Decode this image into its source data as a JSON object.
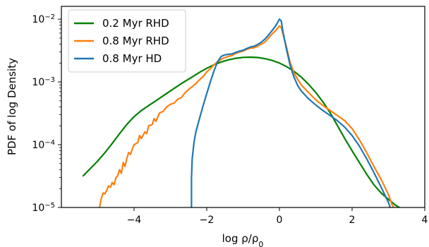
{
  "chart_data": {
    "type": "line",
    "xlabel": "log ρ/ρ",
    "xlabel_subscript": "0",
    "ylabel": "PDF of log Density",
    "xlim": [
      -6.0,
      4.0
    ],
    "ylim": [
      1e-05,
      0.016
    ],
    "yscale": "log",
    "grid": false,
    "legend_position": "top-left",
    "xticks": [
      {
        "value": -4,
        "label": "−4"
      },
      {
        "value": -2,
        "label": "−2"
      },
      {
        "value": 0,
        "label": "0"
      },
      {
        "value": 2,
        "label": "2"
      },
      {
        "value": 4,
        "label": "4"
      }
    ],
    "yticks": [
      {
        "value": 1e-05,
        "base": "10",
        "exp": "−5"
      },
      {
        "value": 0.0001,
        "base": "10",
        "exp": "−4"
      },
      {
        "value": 0.001,
        "base": "10",
        "exp": "−3"
      },
      {
        "value": 0.01,
        "base": "10",
        "exp": "−2"
      }
    ],
    "series": [
      {
        "name": "0.2 Myr RHD",
        "color": "#008000",
        "points": [
          [
            -5.4,
            3.2e-05
          ],
          [
            -5.2,
            4.2e-05
          ],
          [
            -5.0,
            5.5e-05
          ],
          [
            -4.8,
            7.5e-05
          ],
          [
            -4.6,
            0.000105
          ],
          [
            -4.4,
            0.00015
          ],
          [
            -4.2,
            0.00021
          ],
          [
            -4.0,
            0.00028
          ],
          [
            -3.8,
            0.00035
          ],
          [
            -3.6,
            0.00042
          ],
          [
            -3.4,
            0.0005
          ],
          [
            -3.2,
            0.0006
          ],
          [
            -3.0,
            0.00072
          ],
          [
            -2.8,
            0.00086
          ],
          [
            -2.6,
            0.00102
          ],
          [
            -2.4,
            0.0012
          ],
          [
            -2.2,
            0.00142
          ],
          [
            -2.0,
            0.00165
          ],
          [
            -1.8,
            0.00188
          ],
          [
            -1.6,
            0.00208
          ],
          [
            -1.4,
            0.00225
          ],
          [
            -1.2,
            0.00238
          ],
          [
            -1.0,
            0.00246
          ],
          [
            -0.8,
            0.00248
          ],
          [
            -0.6,
            0.00245
          ],
          [
            -0.4,
            0.00235
          ],
          [
            -0.2,
            0.0022
          ],
          [
            0.0,
            0.002
          ],
          [
            0.2,
            0.00175
          ],
          [
            0.4,
            0.00148
          ],
          [
            0.6,
            0.0012
          ],
          [
            0.8,
            0.00092
          ],
          [
            1.0,
            0.00068
          ],
          [
            1.2,
            0.00048
          ],
          [
            1.4,
            0.00032
          ],
          [
            1.6,
            0.0002
          ],
          [
            1.8,
            0.000125
          ],
          [
            2.0,
            8e-05
          ],
          [
            2.2,
            5.2e-05
          ],
          [
            2.4,
            3.4e-05
          ],
          [
            2.6,
            2.3e-05
          ],
          [
            2.8,
            1.7e-05
          ],
          [
            3.0,
            1.35e-05
          ],
          [
            3.2,
            1.08e-05
          ],
          [
            3.3,
            1e-05
          ]
        ]
      },
      {
        "name": "0.8 Myr RHD",
        "color": "#ff7f0e",
        "points": [
          [
            -4.95,
            1e-05
          ],
          [
            -4.9,
            1.4e-05
          ],
          [
            -4.85,
            1.7e-05
          ],
          [
            -4.8,
            1.65e-05
          ],
          [
            -4.75,
            1.9e-05
          ],
          [
            -4.7,
            2.2e-05
          ],
          [
            -4.65,
            2.1e-05
          ],
          [
            -4.6,
            2.5e-05
          ],
          [
            -4.55,
            2.3e-05
          ],
          [
            -4.5,
            3e-05
          ],
          [
            -4.45,
            3.2e-05
          ],
          [
            -4.4,
            4e-05
          ],
          [
            -4.35,
            3.5e-05
          ],
          [
            -4.3,
            5.2e-05
          ],
          [
            -4.25,
            4.5e-05
          ],
          [
            -4.2,
            6e-05
          ],
          [
            -4.15,
            7.5e-05
          ],
          [
            -4.1,
            7e-05
          ],
          [
            -4.05,
            8.5e-05
          ],
          [
            -4.0,
            0.0001
          ],
          [
            -3.9,
            0.000108
          ],
          [
            -3.85,
            0.00014
          ],
          [
            -3.8,
            0.000125
          ],
          [
            -3.7,
            0.00016
          ],
          [
            -3.65,
            0.00015
          ],
          [
            -3.6,
            0.0002
          ],
          [
            -3.5,
            0.00021
          ],
          [
            -3.45,
            0.00026
          ],
          [
            -3.4,
            0.000235
          ],
          [
            -3.3,
            0.00032
          ],
          [
            -3.2,
            0.00034
          ],
          [
            -3.1,
            0.0004
          ],
          [
            -3.0,
            0.00044
          ],
          [
            -2.9,
            0.00046
          ],
          [
            -2.8,
            0.00053
          ],
          [
            -2.7,
            0.00056
          ],
          [
            -2.6,
            0.00067
          ],
          [
            -2.5,
            0.00076
          ],
          [
            -2.4,
            0.00084
          ],
          [
            -2.3,
            0.00094
          ],
          [
            -2.2,
            0.00108
          ],
          [
            -2.1,
            0.00122
          ],
          [
            -2.0,
            0.00145
          ],
          [
            -1.9,
            0.00162
          ],
          [
            -1.8,
            0.00188
          ],
          [
            -1.7,
            0.0021
          ],
          [
            -1.6,
            0.0023
          ],
          [
            -1.5,
            0.00245
          ],
          [
            -1.4,
            0.00255
          ],
          [
            -1.3,
            0.00265
          ],
          [
            -1.2,
            0.00285
          ],
          [
            -1.1,
            0.003
          ],
          [
            -1.0,
            0.0031
          ],
          [
            -0.9,
            0.0033
          ],
          [
            -0.8,
            0.00345
          ],
          [
            -0.7,
            0.0035
          ],
          [
            -0.6,
            0.0037
          ],
          [
            -0.5,
            0.004
          ],
          [
            -0.4,
            0.0043
          ],
          [
            -0.3,
            0.005
          ],
          [
            -0.2,
            0.0058
          ],
          [
            -0.1,
            0.0066
          ],
          [
            0.0,
            0.0078
          ],
          [
            0.05,
            0.0074
          ],
          [
            0.1,
            0.0058
          ],
          [
            0.2,
            0.0035
          ],
          [
            0.3,
            0.002
          ],
          [
            0.4,
            0.0014
          ],
          [
            0.5,
            0.0011
          ],
          [
            0.6,
            0.0009
          ],
          [
            0.8,
            0.00068
          ],
          [
            1.0,
            0.00052
          ],
          [
            1.2,
            0.00042
          ],
          [
            1.4,
            0.00035
          ],
          [
            1.6,
            0.00029
          ],
          [
            1.8,
            0.00024
          ],
          [
            2.0,
            0.00018
          ],
          [
            2.2,
            0.00012
          ],
          [
            2.4,
            7.5e-05
          ],
          [
            2.6,
            4.5e-05
          ],
          [
            2.8,
            2.8e-05
          ],
          [
            3.0,
            1.6e-05
          ],
          [
            3.1,
            1.1e-05
          ],
          [
            3.15,
            1e-05
          ]
        ]
      },
      {
        "name": "0.8 Myr HD",
        "color": "#1f77b4",
        "points": [
          [
            -2.42,
            1e-05
          ],
          [
            -2.42,
            3e-05
          ],
          [
            -2.4,
            6e-05
          ],
          [
            -2.35,
            0.00011
          ],
          [
            -2.3,
            0.00016
          ],
          [
            -2.2,
            0.00026
          ],
          [
            -2.1,
            0.00042
          ],
          [
            -2.0,
            0.00065
          ],
          [
            -1.9,
            0.001
          ],
          [
            -1.8,
            0.0015
          ],
          [
            -1.7,
            0.0021
          ],
          [
            -1.6,
            0.00255
          ],
          [
            -1.5,
            0.0027
          ],
          [
            -1.4,
            0.00275
          ],
          [
            -1.3,
            0.0028
          ],
          [
            -1.2,
            0.00295
          ],
          [
            -1.1,
            0.0031
          ],
          [
            -1.0,
            0.0032
          ],
          [
            -0.9,
            0.0034
          ],
          [
            -0.8,
            0.0036
          ],
          [
            -0.7,
            0.0037
          ],
          [
            -0.6,
            0.00395
          ],
          [
            -0.5,
            0.0043
          ],
          [
            -0.4,
            0.0048
          ],
          [
            -0.3,
            0.0056
          ],
          [
            -0.2,
            0.0066
          ],
          [
            -0.1,
            0.0079
          ],
          [
            0.0,
            0.01
          ],
          [
            0.05,
            0.0094
          ],
          [
            0.1,
            0.0062
          ],
          [
            0.2,
            0.0032
          ],
          [
            0.3,
            0.0018
          ],
          [
            0.4,
            0.0012
          ],
          [
            0.5,
            0.00088
          ],
          [
            0.6,
            0.00072
          ],
          [
            0.8,
            0.00054
          ],
          [
            1.0,
            0.00043
          ],
          [
            1.2,
            0.00035
          ],
          [
            1.4,
            0.00029
          ],
          [
            1.6,
            0.00024
          ],
          [
            1.8,
            0.00019
          ],
          [
            2.0,
            0.00014
          ],
          [
            2.2,
            9.5e-05
          ],
          [
            2.4,
            6e-05
          ],
          [
            2.6,
            3.6e-05
          ],
          [
            2.8,
            2.1e-05
          ],
          [
            3.0,
            1.2e-05
          ],
          [
            3.05,
            1e-05
          ]
        ]
      }
    ]
  }
}
